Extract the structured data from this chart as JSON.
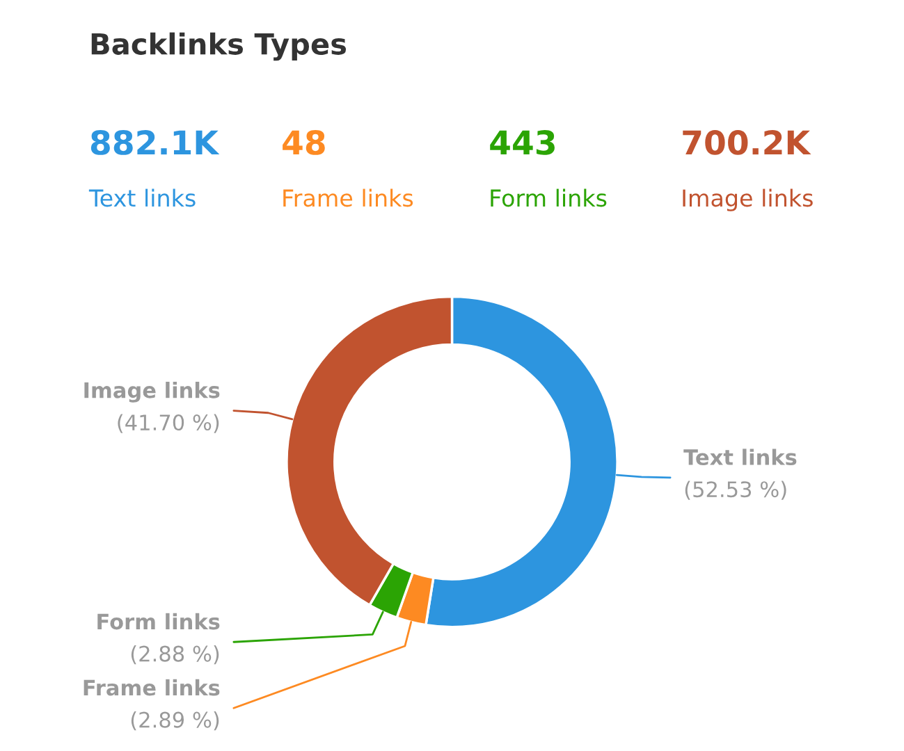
{
  "chart_data": [
    {
      "type": "other",
      "title": "Backlinks Types",
      "annotations": [
        "882.1K",
        "Text links",
        "48",
        "Frame links",
        "443",
        "Form links",
        "700.2K",
        "Image links"
      ],
      "colors": [
        "#2d95df",
        "#fd8a22",
        "#2ba404",
        "#c1532f"
      ]
    },
    {
      "type": "donut",
      "categories": [
        "Text links",
        "Frame links",
        "Form links",
        "Image links"
      ],
      "values": [
        52.53,
        2.89,
        2.88,
        41.7
      ],
      "value_labels": [
        "(52.53 %)",
        "(2.89 %)",
        "(2.88 %)",
        "(41.70 %)"
      ],
      "colors": [
        "#2d95df",
        "#fd8a22",
        "#2ba404",
        "#c1532f"
      ]
    }
  ]
}
